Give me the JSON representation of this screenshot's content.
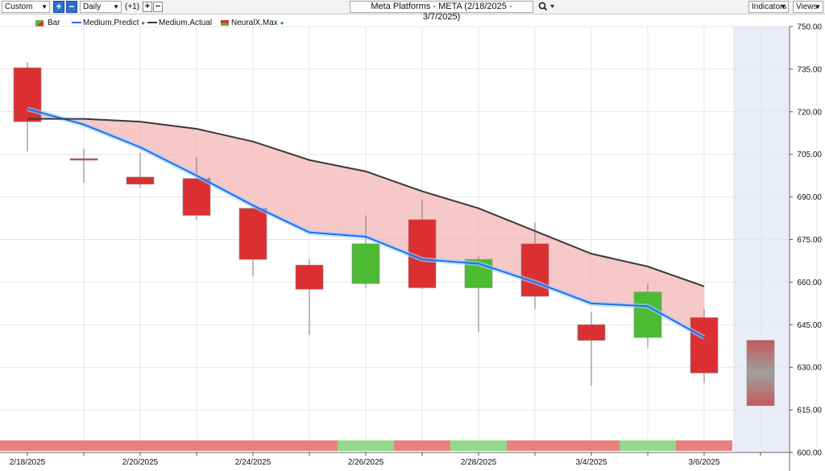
{
  "toolbar": {
    "preset": "Custom",
    "interval": "Daily",
    "offset": "(+1)",
    "plus": "+",
    "minus": "−",
    "title": "Meta Platforms - META (2/18/2025 - 3/7/2025)",
    "indicators_label": "Indicators",
    "views_label": "Views",
    "search_icon": "magnifier-icon"
  },
  "legend": [
    {
      "label": "Bar"
    },
    {
      "label": "Medium.Predict"
    },
    {
      "label": "Medium.Actual"
    },
    {
      "label": "NeuralX.Max"
    }
  ],
  "colors": {
    "up": "#4cbb33",
    "down": "#dc2f32",
    "predict": "#1f6ff0",
    "actual": "#3a3a3a",
    "fill": "#f4b6b6",
    "strip_up": "#92d98a",
    "strip_down": "#e88080",
    "forecast_bg": "#e9eef6"
  },
  "chart_data": {
    "type": "candlestick",
    "y_ticks": [
      "750.00",
      "735.00",
      "720.00",
      "705.00",
      "690.00",
      "675.00",
      "660.00",
      "645.00",
      "630.00",
      "615.00",
      "600.00"
    ],
    "ylim": [
      600,
      750
    ],
    "x_labels": [
      "2/18/2025",
      "2/20/2025",
      "2/24/2025",
      "2/26/2025",
      "2/28/2025",
      "3/4/2025",
      "3/6/2025"
    ],
    "bars": [
      {
        "open": 735.5,
        "high": 737.5,
        "low": 706.0,
        "close": 716.5
      },
      {
        "open": 703.5,
        "high": 707.0,
        "low": 695.0,
        "close": 703.0
      },
      {
        "open": 697.0,
        "high": 705.5,
        "low": 693.5,
        "close": 694.5
      },
      {
        "open": 696.5,
        "high": 704.0,
        "low": 682.0,
        "close": 683.5
      },
      {
        "open": 686.0,
        "high": 686.5,
        "low": 662.0,
        "close": 668.0
      },
      {
        "open": 666.0,
        "high": 668.0,
        "low": 641.5,
        "close": 657.5
      },
      {
        "open": 659.5,
        "high": 683.5,
        "low": 658.0,
        "close": 673.5
      },
      {
        "open": 682.0,
        "high": 689.0,
        "low": 657.5,
        "close": 658.0
      },
      {
        "open": 658.0,
        "high": 669.0,
        "low": 642.5,
        "close": 668.0
      },
      {
        "open": 673.5,
        "high": 681.0,
        "low": 650.5,
        "close": 655.0
      },
      {
        "open": 645.0,
        "high": 649.5,
        "low": 623.5,
        "close": 639.5
      },
      {
        "open": 640.5,
        "high": 659.5,
        "low": 637.0,
        "close": 656.5
      },
      {
        "open": 647.5,
        "high": 650.5,
        "low": 624.5,
        "close": 628.0
      }
    ],
    "forecast_bar": {
      "high": 639.5,
      "low": 616.5
    },
    "medium_predict": [
      721.0,
      715.5,
      707.5,
      697.5,
      687.0,
      677.5,
      676.0,
      668.0,
      666.5,
      660.0,
      652.5,
      651.5,
      640.5
    ],
    "medium_actual": [
      717.5,
      717.5,
      716.5,
      714.0,
      709.5,
      703.0,
      699.0,
      692.0,
      686.0,
      678.0,
      670.0,
      665.5,
      658.5
    ],
    "strip": [
      "down",
      "down",
      "down",
      "down",
      "down",
      "down",
      "up",
      "down",
      "up",
      "down",
      "down",
      "up",
      "down"
    ]
  }
}
